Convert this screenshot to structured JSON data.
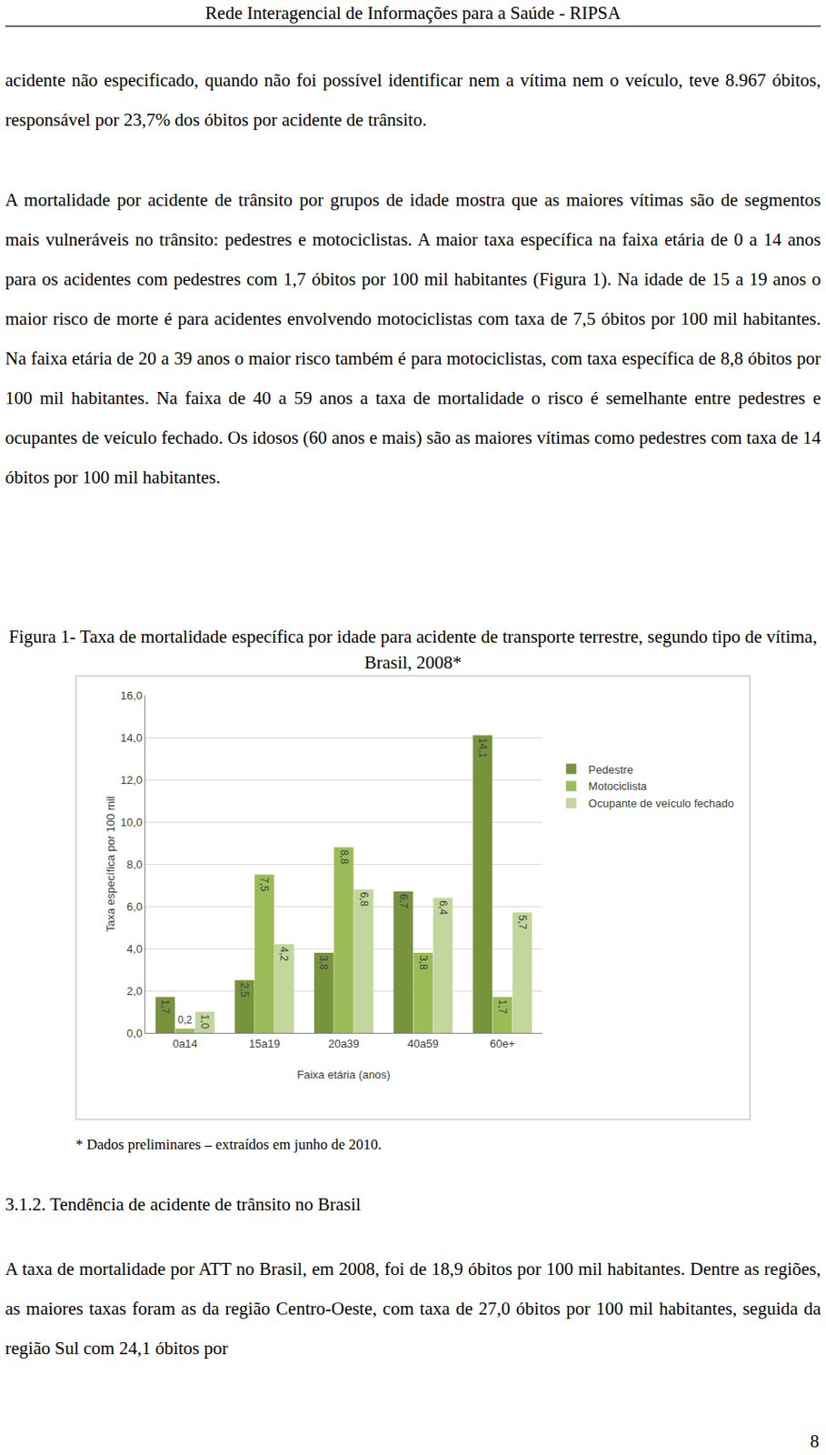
{
  "header": "Rede Interagencial de Informações para a Saúde - RIPSA",
  "paragraphs": [
    "acidente não especificado, quando não foi possível identificar nem a vítima nem o veículo, teve 8.967 óbitos, responsável por 23,7% dos óbitos por acidente de trânsito.",
    "A mortalidade por acidente de trânsito por grupos de idade mostra que as maiores vítimas são de segmentos mais vulneráveis no trânsito: pedestres e motociclistas. A maior taxa específica na faixa etária de 0 a 14 anos para os acidentes com pedestres com 1,7 óbitos por 100 mil habitantes (Figura 1). Na idade de 15 a 19 anos o maior risco de morte é para acidentes envolvendo motociclistas com taxa de 7,5 óbitos por 100 mil habitantes. Na faixa etária de 20 a 39 anos o maior risco também é para motociclistas, com taxa específica de 8,8 óbitos por 100 mil habitantes. Na faixa de 40 a 59 anos a taxa de mortalidade o risco é semelhante entre pedestres e ocupantes de veículo fechado. Os idosos (60 anos e mais) são as maiores vítimas como pedestres com taxa de 14 óbitos por 100 mil habitantes."
  ],
  "figure": {
    "caption": "Figura 1- Taxa de mortalidade específica por idade para acidente de transporte terrestre, segundo tipo de vítima, Brasil, 2008*",
    "note": "* Dados preliminares – extraídos em junho de 2010."
  },
  "chart_data": {
    "type": "bar",
    "x_label": "Faixa etária (anos)",
    "y_label": "Taxa específica por 100 mil",
    "categories": [
      "0a14",
      "15a19",
      "20a39",
      "40a59",
      "60e+"
    ],
    "series": [
      {
        "name": "Pedestre",
        "color": "#77933c",
        "values": [
          1.7,
          2.5,
          3.8,
          6.7,
          14.1
        ],
        "value_labels": [
          "1,7",
          "2,5",
          "3,8",
          "6,7",
          "14,1"
        ]
      },
      {
        "name": "Motociclista",
        "color": "#9bbb59",
        "values": [
          0.2,
          7.5,
          8.8,
          3.8,
          1.7
        ],
        "value_labels": [
          "0,2",
          "7,5",
          "8,8",
          "3,8",
          "1,7"
        ]
      },
      {
        "name": "Ocupante de veículo fechado",
        "color": "#c3d69b",
        "values": [
          1.0,
          4.2,
          6.8,
          6.4,
          5.7
        ],
        "value_labels": [
          "1,0",
          "4,2",
          "6,8",
          "6,4",
          "5,7"
        ]
      }
    ],
    "ylim": [
      0,
      16
    ],
    "yticks": [
      {
        "value": 0,
        "label": "0,0"
      },
      {
        "value": 2,
        "label": "2,0"
      },
      {
        "value": 4,
        "label": "4,0"
      },
      {
        "value": 6,
        "label": "6,0"
      },
      {
        "value": 8,
        "label": "8,0"
      },
      {
        "value": 10,
        "label": "10,0"
      },
      {
        "value": 12,
        "label": "12,0"
      },
      {
        "value": 14,
        "label": "14,0"
      },
      {
        "value": 16,
        "label": "16,0"
      }
    ],
    "grid": true,
    "legend": "right",
    "data_labels": true
  },
  "section": {
    "heading": "3.1.2. Tendência de acidente de trânsito no Brasil",
    "paragraph": "A taxa de mortalidade por ATT no Brasil, em 2008, foi de 18,9 óbitos por 100 mil habitantes. Dentre as regiões, as maiores taxas foram as da região Centro-Oeste, com taxa de 27,0 óbitos por 100 mil habitantes, seguida da região Sul com 24,1 óbitos por"
  },
  "page_number": "8"
}
